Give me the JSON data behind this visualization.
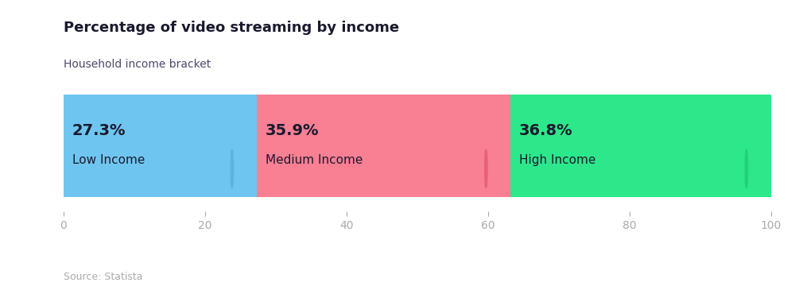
{
  "title": "Percentage of video streaming by income",
  "subtitle": "Household income bracket",
  "source": "Source: Statista",
  "segments": [
    {
      "label": "27.3%",
      "sublabel": "Low Income",
      "value": 27.3,
      "color": "#6ec6f0",
      "symbol_color": "#5ab4e0"
    },
    {
      "label": "35.9%",
      "sublabel": "Medium Income",
      "value": 35.9,
      "color": "#f97f93",
      "symbol_color": "#e86070"
    },
    {
      "label": "36.8%",
      "sublabel": "High Income",
      "value": 36.8,
      "color": "#2de88a",
      "symbol_color": "#20d07a"
    }
  ],
  "xlim": [
    0,
    100
  ],
  "xticks": [
    0,
    20,
    40,
    60,
    80,
    100
  ],
  "bar_height": 0.62,
  "title_color": "#1a1a2e",
  "subtitle_color": "#4a4a6a",
  "tick_color": "#aaaaaa",
  "source_color": "#aaaaaa",
  "background_color": "#ffffff"
}
